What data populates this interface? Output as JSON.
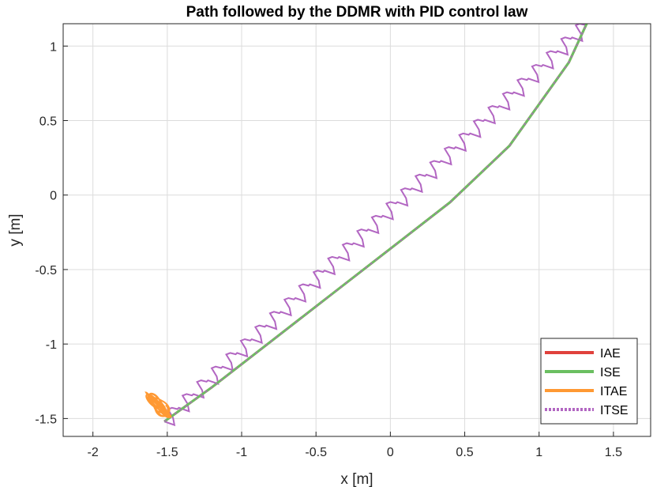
{
  "chart_data": {
    "type": "line",
    "title": "Path followed by the DDMR with PID control law",
    "xlabel": "x [m]",
    "ylabel": "y [m]",
    "xlim": [
      -2.2,
      1.75
    ],
    "ylim": [
      -1.62,
      1.15
    ],
    "xticks": [
      -2,
      -1.5,
      -1,
      -0.5,
      0,
      0.5,
      1,
      1.5
    ],
    "xtick_labels": [
      "-2",
      "-1.5",
      "-1",
      "-0.5",
      "0",
      "0.5",
      "1",
      "1.5"
    ],
    "yticks": [
      -1.5,
      -1,
      -0.5,
      0,
      0.5,
      1
    ],
    "ytick_labels": [
      "-1.5",
      "-1",
      "-0.5",
      "0",
      "0.5",
      "1"
    ],
    "grid": true,
    "legend_position": "bottom-right",
    "series": [
      {
        "name": "IAE",
        "color": "#e0413c",
        "style": "solid",
        "x": [
          -1.52,
          -1.2,
          -0.8,
          -0.4,
          0.0,
          0.4,
          0.8,
          1.2,
          1.32
        ],
        "y": [
          -1.52,
          -1.29,
          -0.98,
          -0.67,
          -0.36,
          -0.05,
          0.33,
          0.89,
          1.15
        ]
      },
      {
        "name": "ISE",
        "color": "#6bbf61",
        "style": "solid",
        "x": [
          -1.52,
          -1.2,
          -0.8,
          -0.4,
          0.0,
          0.4,
          0.8,
          1.2,
          1.32
        ],
        "y": [
          -1.52,
          -1.29,
          -0.98,
          -0.67,
          -0.36,
          -0.05,
          0.33,
          0.89,
          1.15
        ]
      },
      {
        "name": "ITAE",
        "color": "#ff9933",
        "style": "solid",
        "center": [
          -1.56,
          -1.41
        ],
        "radius": 0.09
      },
      {
        "name": "ITSE",
        "color": "#b266c2",
        "style": "dotted",
        "x": [
          -1.52,
          -1.3,
          -1.0,
          -0.6,
          -0.2,
          0.2,
          0.6,
          1.0,
          1.32
        ],
        "y": [
          -1.52,
          -1.35,
          -1.12,
          -0.81,
          -0.5,
          -0.19,
          0.13,
          0.69,
          1.15
        ]
      }
    ]
  }
}
